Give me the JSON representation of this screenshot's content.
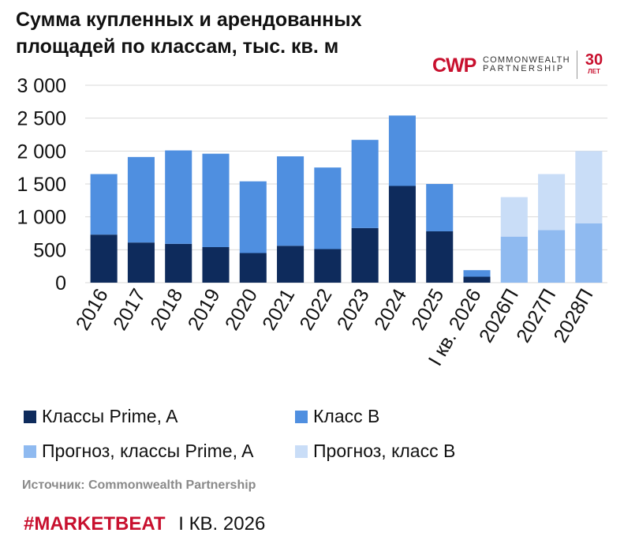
{
  "title": "Сумма купленных и арендованных площадей по классам, тыс. кв. м",
  "logo": {
    "mark_text": "CWP",
    "name_line1": "COMMONWEALTH",
    "name_line2": "PARTNERSHIP",
    "anniversary_number": "30",
    "anniversary_unit": "ЛЕТ",
    "brand_color": "#c8102e"
  },
  "chart_data": {
    "type": "bar",
    "stacked": true,
    "categories": [
      "2016",
      "2017",
      "2018",
      "2019",
      "2020",
      "2021",
      "2022",
      "2023",
      "2024",
      "2025",
      "I кв. 2026",
      "2026П",
      "2027П",
      "2028П"
    ],
    "series": [
      {
        "name": "Классы Prime, A",
        "color": "#0e2b5c",
        "values": [
          730,
          610,
          590,
          540,
          450,
          560,
          510,
          830,
          1470,
          780,
          90,
          null,
          null,
          null
        ]
      },
      {
        "name": "Класс B",
        "color": "#4f8fe0",
        "values": [
          920,
          1300,
          1420,
          1420,
          1090,
          1360,
          1240,
          1340,
          1070,
          720,
          100,
          null,
          null,
          null
        ]
      },
      {
        "name": "Прогноз, классы Prime, A",
        "color": "#8fbaf0",
        "values": [
          null,
          null,
          null,
          null,
          null,
          null,
          null,
          null,
          null,
          null,
          null,
          700,
          800,
          900
        ]
      },
      {
        "name": "Прогноз, класс B",
        "color": "#c9ddf7",
        "values": [
          null,
          null,
          null,
          null,
          null,
          null,
          null,
          null,
          null,
          null,
          null,
          600,
          850,
          1100
        ]
      }
    ],
    "ylim": [
      0,
      3000
    ],
    "yticks": [
      0,
      500,
      1000,
      1500,
      2000,
      2500,
      3000
    ],
    "ytick_labels": [
      "0",
      "500",
      "1 000",
      "1 500",
      "2 000",
      "2 500",
      "3 000"
    ],
    "grid": true,
    "legend_placement": "bottom"
  },
  "source": "Источник: Commonwealth Partnership",
  "footer": {
    "brand": "#MARKETBEAT",
    "period": "I КВ. 2026"
  }
}
